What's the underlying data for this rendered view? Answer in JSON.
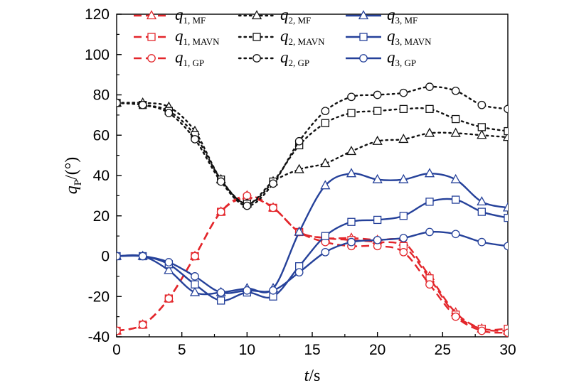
{
  "chart_data": {
    "type": "line",
    "xlabel": "t/s",
    "ylabel": "q_P/(°)",
    "xlim": [
      0,
      30
    ],
    "ylim": [
      -40,
      120
    ],
    "xticks": [
      0,
      5,
      10,
      15,
      20,
      25,
      30
    ],
    "yticks": [
      -40,
      -20,
      0,
      20,
      40,
      60,
      80,
      100,
      120
    ],
    "grid": false,
    "legend_position": "top, three columns",
    "x": [
      0,
      2,
      4,
      6,
      8,
      10,
      12,
      14,
      16,
      18,
      20,
      22,
      24,
      26,
      28,
      30
    ],
    "series": [
      {
        "name": "q1, MF",
        "label_main": "q",
        "label_sub": "1, MF",
        "color": "#e3262b",
        "dash": "dashed",
        "marker": "triangle",
        "values": [
          -37,
          -34,
          -21,
          0,
          22,
          30,
          24,
          12,
          9,
          9,
          8,
          7,
          -10,
          -28,
          -36,
          -37
        ]
      },
      {
        "name": "q1, MAVN",
        "label_main": "q",
        "label_sub": "1, MAVN",
        "color": "#e3262b",
        "dash": "dashed",
        "marker": "square",
        "values": [
          -37,
          -34,
          -21,
          0,
          22,
          29,
          24,
          12,
          9,
          8,
          7,
          5,
          -11,
          -29,
          -36,
          -36
        ]
      },
      {
        "name": "q1, GP",
        "label_main": "q",
        "label_sub": "1, GP",
        "color": "#e3262b",
        "dash": "dashed",
        "marker": "circle",
        "values": [
          -37,
          -34,
          -21,
          0,
          22,
          30,
          24,
          12,
          7,
          5,
          5,
          2,
          -14,
          -30,
          -37,
          -38
        ]
      },
      {
        "name": "q2, MF",
        "label_main": "q",
        "label_sub": "2, MF",
        "color": "#111111",
        "dash": "dotted",
        "marker": "triangle",
        "values": [
          76,
          76,
          74,
          62,
          38,
          26,
          37,
          43,
          46,
          52,
          57,
          58,
          61,
          61,
          60,
          59
        ]
      },
      {
        "name": "q2, MAVN",
        "label_main": "q",
        "label_sub": "2, MAVN",
        "color": "#111111",
        "dash": "dotted",
        "marker": "square",
        "values": [
          76,
          75,
          72,
          60,
          38,
          26,
          37,
          55,
          66,
          71,
          72,
          73,
          73,
          68,
          64,
          62
        ]
      },
      {
        "name": "q2, GP",
        "label_main": "q",
        "label_sub": "2, GP",
        "color": "#111111",
        "dash": "dotted",
        "marker": "circle",
        "values": [
          76,
          75,
          71,
          58,
          37,
          25,
          36,
          57,
          72,
          79,
          80,
          81,
          84,
          82,
          75,
          73
        ]
      },
      {
        "name": "q3, MF",
        "label_main": "q",
        "label_sub": "3, MF",
        "color": "#25419a",
        "dash": "solid",
        "marker": "triangle",
        "values": [
          0,
          0,
          -7,
          -18,
          -18,
          -16,
          -16,
          12,
          35,
          41,
          38,
          38,
          41,
          38,
          27,
          24
        ]
      },
      {
        "name": "q3, MAVN",
        "label_main": "q",
        "label_sub": "3, MAVN",
        "color": "#25419a",
        "dash": "solid",
        "marker": "square",
        "values": [
          0,
          0,
          -4,
          -14,
          -22,
          -18,
          -20,
          -5,
          10,
          17,
          18,
          20,
          27,
          28,
          22,
          19
        ]
      },
      {
        "name": "q3, GP",
        "label_main": "q",
        "label_sub": "3, GP",
        "color": "#25419a",
        "dash": "solid",
        "marker": "circle",
        "values": [
          0,
          0,
          -3,
          -10,
          -18,
          -17,
          -17,
          -8,
          2,
          7,
          8,
          9,
          12,
          11,
          7,
          5
        ]
      }
    ]
  }
}
